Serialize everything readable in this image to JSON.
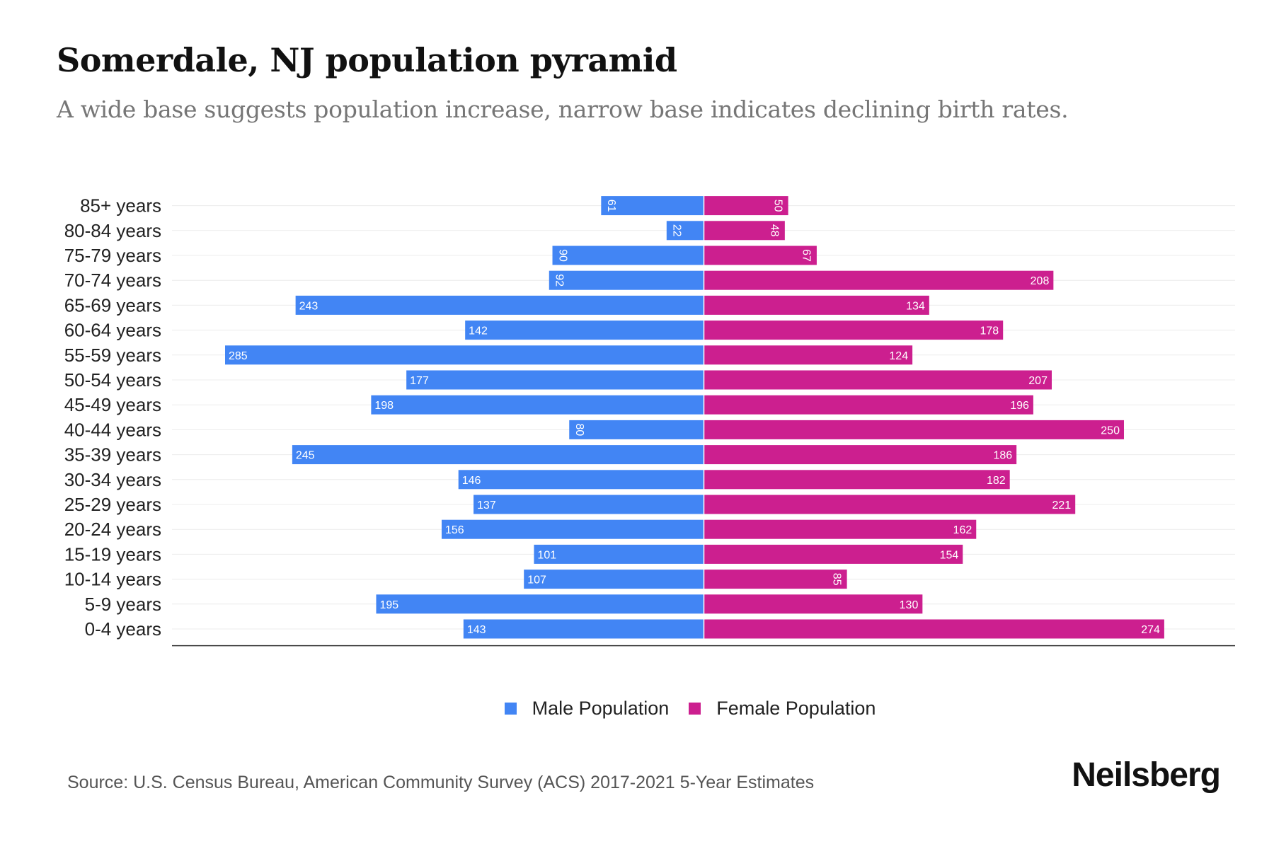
{
  "chart_data": {
    "type": "bar",
    "orientation": "horizontal-pyramid",
    "title": "Somerdale, NJ population pyramid",
    "subtitle": "A wide base suggests population increase, narrow base indicates declining birth rates.",
    "categories": [
      "85+ years",
      "80-84 years",
      "75-79 years",
      "70-74 years",
      "65-69 years",
      "60-64 years",
      "55-59 years",
      "50-54 years",
      "45-49 years",
      "40-44 years",
      "35-39 years",
      "30-34 years",
      "25-29 years",
      "20-24 years",
      "15-19 years",
      "10-14 years",
      "5-9 years",
      "0-4 years"
    ],
    "series": [
      {
        "name": "Male Population",
        "color": "#4285F4",
        "values": [
          61,
          22,
          90,
          92,
          243,
          142,
          285,
          177,
          198,
          80,
          245,
          146,
          137,
          156,
          101,
          107,
          195,
          143
        ]
      },
      {
        "name": "Female Population",
        "color": "#CC1F8F",
        "values": [
          50,
          48,
          67,
          208,
          134,
          178,
          124,
          207,
          196,
          250,
          186,
          182,
          221,
          162,
          154,
          85,
          130,
          274
        ]
      }
    ],
    "xlabel": "",
    "ylabel": "",
    "xlim": [
      -310,
      310
    ],
    "grid": true,
    "legend_position": "bottom-center"
  },
  "legend": {
    "male_label": "Male Population",
    "female_label": "Female Population",
    "male_color": "#4285F4",
    "female_color": "#CC1F8F"
  },
  "footer": {
    "source": "Source: U.S. Census Bureau, American Community Survey (ACS) 2017-2021 5-Year Estimates",
    "brand": "Neilsberg"
  }
}
